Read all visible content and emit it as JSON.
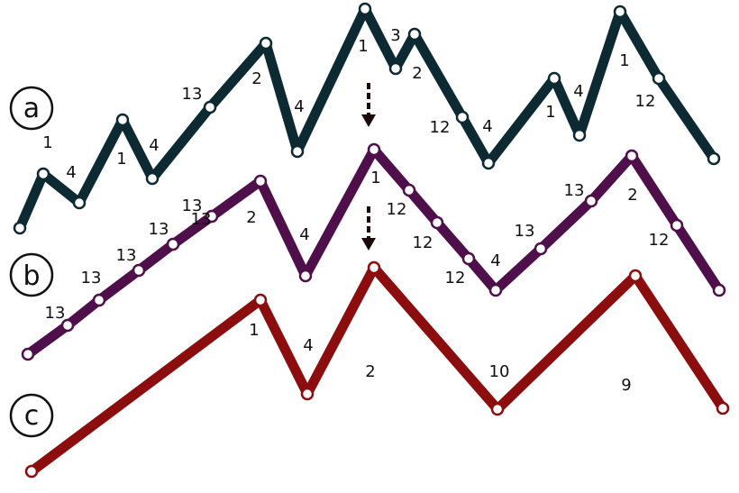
{
  "colors": {
    "a": "#0d2a33",
    "b": "#4e0f4a",
    "c": "#8b0d0d",
    "node_fill": "#ffffff",
    "arrow": "#1a0a0a"
  },
  "panels": {
    "a": {
      "label": "a"
    },
    "b": {
      "label": "b"
    },
    "c": {
      "label": "c"
    }
  },
  "labels": {
    "a": [
      "1",
      "4",
      "1",
      "4",
      "13",
      "2",
      "4",
      "1",
      "3",
      "2",
      "12",
      "4",
      "1",
      "4",
      "1",
      "12"
    ],
    "b": [
      "13",
      "13",
      "13",
      "13",
      "13",
      "13",
      "2",
      "4",
      "1",
      "12",
      "12",
      "12",
      "4",
      "13",
      "13",
      "2",
      "12"
    ],
    "c": [
      "1",
      "4",
      "2",
      "10",
      "9"
    ]
  }
}
